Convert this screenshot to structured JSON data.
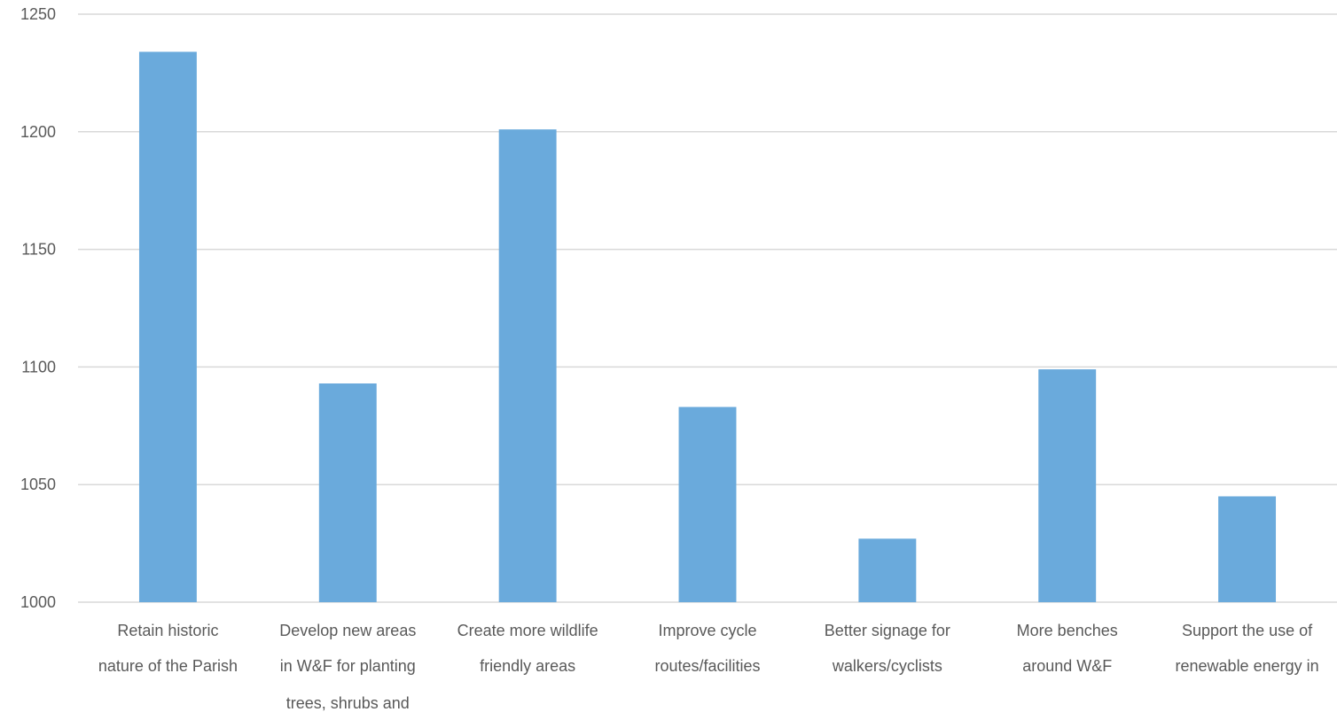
{
  "chart_data": {
    "type": "bar",
    "title": "",
    "xlabel": "",
    "ylabel": "",
    "ylim": [
      1000,
      1250
    ],
    "yticks": [
      1000,
      1050,
      1100,
      1150,
      1200,
      1250
    ],
    "grid": true,
    "legend": "none",
    "categories": [
      "Retain historic nature of the Parish",
      "Develop new areas in W&F for planting trees, shrubs and",
      "Create more wildlife friendly areas",
      "Improve cycle routes/facilities",
      "Better signage for walkers/cyclists",
      "More benches around W&F",
      "Support the use of renewable energy in"
    ],
    "category_label_lines": [
      [
        "Retain historic",
        "nature of the Parish"
      ],
      [
        "Develop new areas",
        "in W&F for planting",
        "trees, shrubs and"
      ],
      [
        "Create more wildlife",
        "friendly areas"
      ],
      [
        "Improve cycle",
        "routes/facilities"
      ],
      [
        "Better signage for",
        "walkers/cyclists"
      ],
      [
        "More benches",
        "around W&F"
      ],
      [
        "Support the use of",
        "renewable energy in"
      ]
    ],
    "values": [
      1234,
      1093,
      1201,
      1083,
      1027,
      1099,
      1045
    ],
    "colors": {
      "bar": "#6aaadc",
      "grid": "#d9d9d9",
      "text": "#595959"
    }
  }
}
